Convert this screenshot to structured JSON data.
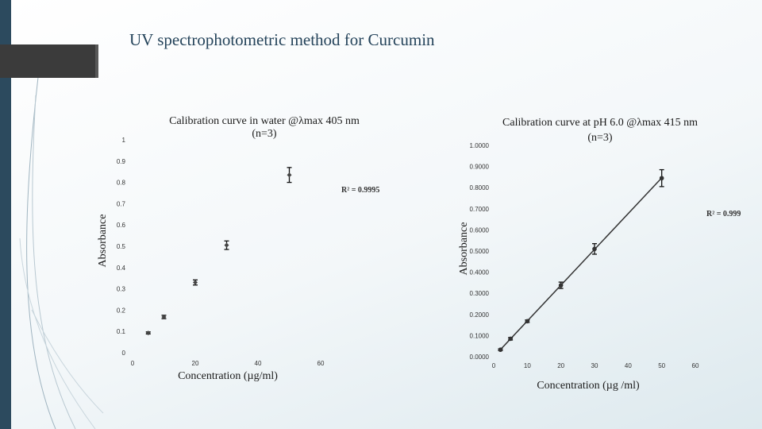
{
  "slide": {
    "title": "UV spectrophotometric method for Curcumin",
    "accent_color": "#2c4a5e"
  },
  "chart_data": [
    {
      "type": "scatter",
      "title": "Calibration curve in water @λmax 405 nm (n=3)",
      "title_lines": [
        "Calibration curve in water @λmax 405 nm",
        "(n=3)"
      ],
      "xlabel": "Concentration (µg/ml)",
      "ylabel": "Absorbance",
      "xlim": [
        0,
        60
      ],
      "ylim": [
        0,
        1
      ],
      "x_ticks": [
        "0",
        "20",
        "40",
        "60"
      ],
      "y_ticks": [
        "0",
        "0.1",
        "0.2",
        "0.3",
        "0.4",
        "0.5",
        "0.6",
        "0.7",
        "0.8",
        "0.9",
        "1"
      ],
      "trendline": false,
      "r_squared": "R² = 0.9995",
      "series": [
        {
          "x": [
            5,
            10,
            20,
            30,
            50
          ],
          "y": [
            0.093,
            0.168,
            0.33,
            0.505,
            0.835
          ],
          "error": [
            0.005,
            0.008,
            0.012,
            0.02,
            0.035
          ]
        }
      ]
    },
    {
      "type": "scatter",
      "title": "Calibration curve at pH 6.0 @λmax 415 nm (n=3)",
      "title_lines": [
        "Calibration curve at pH 6.0 @λmax 415 nm",
        "(n=3)"
      ],
      "xlabel": "Concentration (µg /ml)",
      "ylabel": "Absorbance",
      "xlim": [
        0,
        60
      ],
      "ylim": [
        0,
        1
      ],
      "x_ticks": [
        "0",
        "10",
        "20",
        "30",
        "40",
        "50",
        "60"
      ],
      "y_ticks": [
        "0.0000",
        "0.1000",
        "0.2000",
        "0.3000",
        "0.4000",
        "0.5000",
        "0.6000",
        "0.7000",
        "0.8000",
        "0.9000",
        "1.0000"
      ],
      "trendline": true,
      "r_squared": "R² = 0.999",
      "series": [
        {
          "x": [
            2,
            5,
            10,
            20,
            30,
            50
          ],
          "y": [
            0.033,
            0.085,
            0.168,
            0.338,
            0.51,
            0.845
          ],
          "error": [
            0.004,
            0.006,
            0.006,
            0.015,
            0.025,
            0.04
          ]
        }
      ]
    }
  ]
}
